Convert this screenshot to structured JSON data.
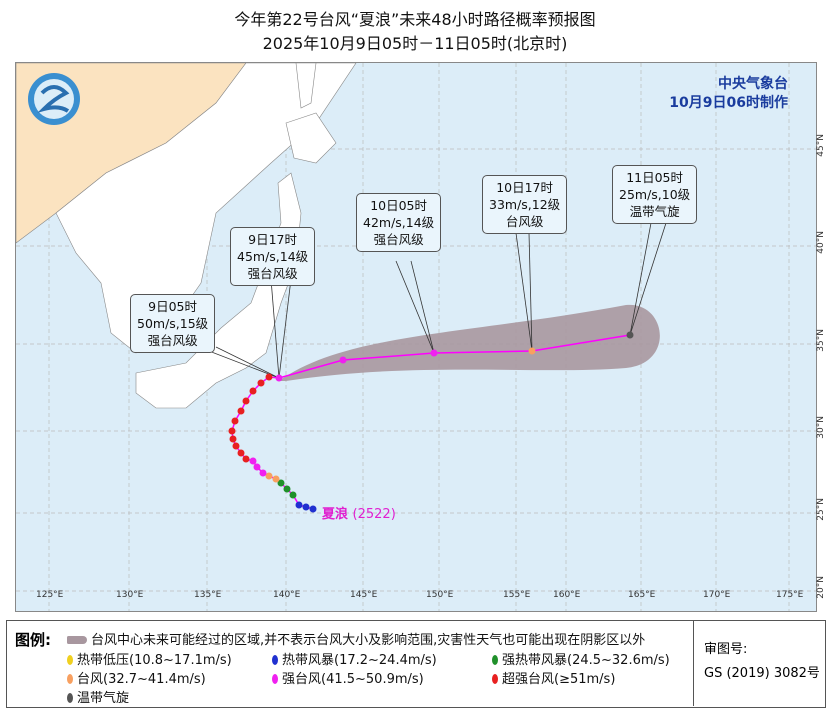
{
  "title": "今年第22号台风“夏浪”未来48小时路径概率预报图",
  "subtitle": "2025年10月9日05时－11日05时(北京时)",
  "agency": "中央气象台",
  "issued": "10月9日06时制作",
  "storm_label": "夏浪",
  "storm_code": "(2522)",
  "lon_labels": [
    "125°E",
    "130°E",
    "135°E",
    "140°E",
    "145°E",
    "150°E",
    "155°E",
    "160°E",
    "165°E",
    "170°E",
    "175°E"
  ],
  "lat_labels": [
    "45°N",
    "40°N",
    "35°N",
    "30°N",
    "25°N",
    "20°N"
  ],
  "forecasts": [
    {
      "time": "9日05时",
      "wind": "50m/s,15级",
      "grade": "强台风级"
    },
    {
      "time": "9日17时",
      "wind": "45m/s,14级",
      "grade": "强台风级"
    },
    {
      "time": "10日05时",
      "wind": "42m/s,14级",
      "grade": "强台风级"
    },
    {
      "time": "10日17时",
      "wind": "33m/s,12级",
      "grade": "台风级"
    },
    {
      "time": "11日05时",
      "wind": "25m/s,10级",
      "grade": "温带气旋"
    }
  ],
  "legend": {
    "header": "图例:",
    "cone": "台风中心未来可能经过的区域,并不表示台风大小及影响范围,灾害性天气也可能出现在阴影区以外",
    "items": [
      {
        "label": "热带低压(10.8~17.1m/s)",
        "color": "#f0d020"
      },
      {
        "label": "热带风暴(17.2~24.4m/s)",
        "color": "#2030d0"
      },
      {
        "label": "强热带风暴(24.5~32.6m/s)",
        "color": "#20902a"
      },
      {
        "label": "台风(32.7~41.4m/s)",
        "color": "#f8a060"
      },
      {
        "label": "强台风(41.5~50.9m/s)",
        "color": "#f020f0"
      },
      {
        "label": "超强台风(≥51m/s)",
        "color": "#e82020"
      },
      {
        "label": "温带气旋",
        "color": "#555555"
      }
    ]
  },
  "approval": {
    "label": "审图号:",
    "number": "GS (2019) 3082号"
  },
  "colors": {
    "cone": "#a8979f",
    "track": "#ff00ff",
    "land": "#ffffff",
    "china": "#fbe3c0",
    "sea": "#dcedf8"
  }
}
